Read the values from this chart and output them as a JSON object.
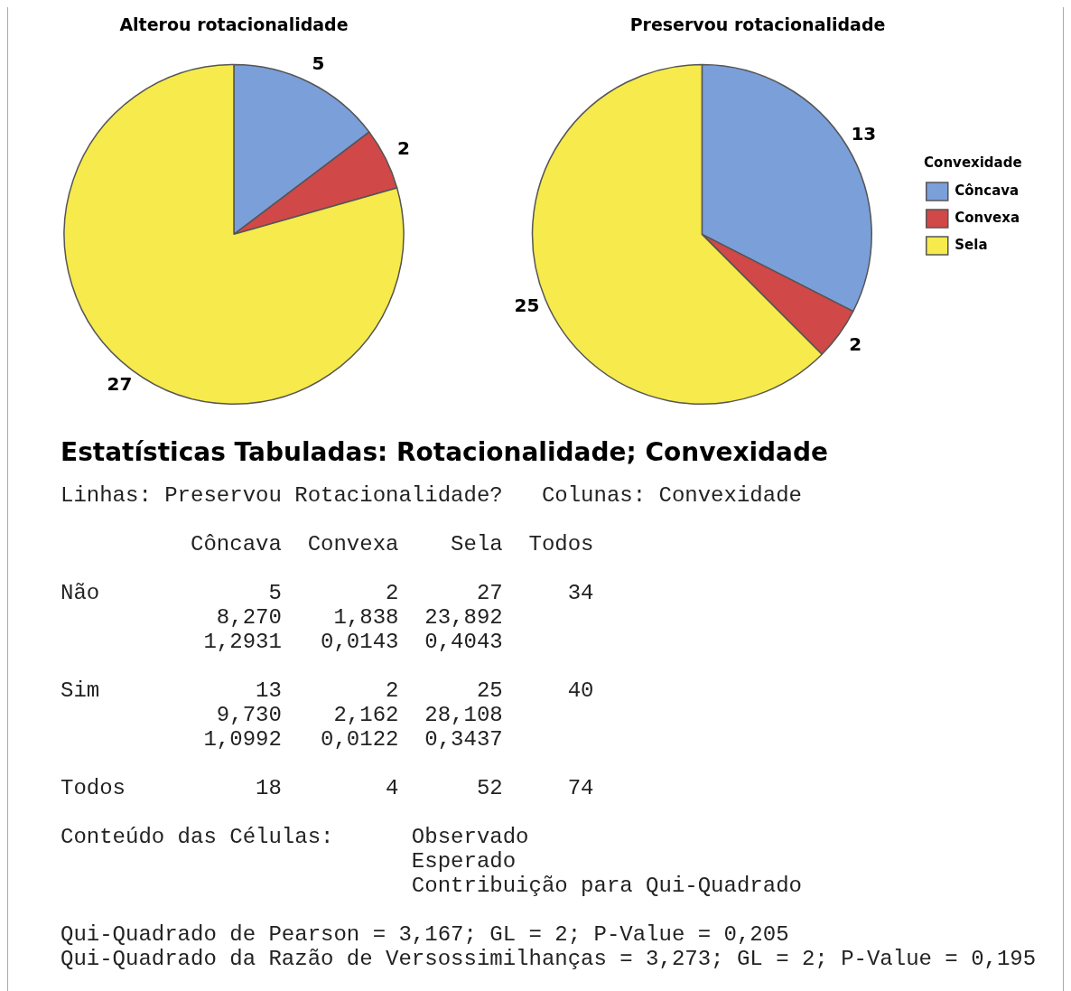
{
  "chart_data": [
    {
      "type": "pie",
      "title": "Alterou rotacionalidade",
      "categories": [
        null,
        null,
        null
      ],
      "values": [
        5,
        2,
        27
      ],
      "colors": [
        "#7b9fd9",
        "#d04848",
        "#f6ea4c"
      ],
      "data_labels": true,
      "legend": false
    },
    {
      "type": "pie",
      "title": "Preservou rotacionalidade",
      "categories": [
        "Côncava",
        "Convexa",
        "Sela"
      ],
      "values": [
        13,
        2,
        25
      ],
      "colors": [
        "#7b9fd9",
        "#d04848",
        "#f6ea4c"
      ],
      "data_labels": true,
      "legend": "right",
      "legend_title": "Convexidade"
    },
    {
      "type": "other",
      "title": "Estatísticas Tabuladas: Rotacionalidade; Convexidade",
      "annotations": [
        "Linhas: Preservou Rotacionalidade?   Colunas: Convexidade",
        "          Côncava  Convexa    Sela  Todos",
        "Não             5        2      27     34\n            8,270    1,838  23,892\n           1,2931   0,0143  0,4043",
        "Sim            13        2      25     40\n            9,730    2,162  28,108\n           1,0992   0,0122  0,3437",
        "Todos          18        4      52     74",
        "Conteúdo das Células:      Observado\n                           Esperado\n                           Contribuição para Qui-Quadrado",
        "Qui-Quadrado de Pearson = 3,167; GL = 2; P-Value = 0,205\nQui-Quadrado da Razão de Versossimilhanças = 3,273; GL = 2; P-Value = 0,195"
      ]
    }
  ]
}
